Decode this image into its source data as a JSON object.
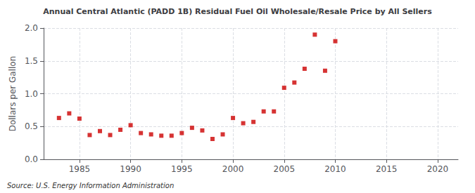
{
  "chart_data": {
    "type": "scatter",
    "title": "Annual Central Atlantic (PADD 1B) Residual Fuel Oil Wholesale/Resale Price by All Sellers",
    "ylabel": "Dollars per Gallon",
    "source": "Source: U.S. Energy Information Administration",
    "x": [
      1983,
      1984,
      1985,
      1986,
      1987,
      1988,
      1989,
      1990,
      1991,
      1992,
      1993,
      1994,
      1995,
      1996,
      1997,
      1998,
      1999,
      2000,
      2001,
      2002,
      2003,
      2004,
      2005,
      2006,
      2007,
      2008,
      2009,
      2010
    ],
    "values": [
      0.63,
      0.7,
      0.62,
      0.37,
      0.43,
      0.37,
      0.45,
      0.52,
      0.4,
      0.38,
      0.36,
      0.36,
      0.4,
      0.48,
      0.44,
      0.31,
      0.38,
      0.63,
      0.55,
      0.57,
      0.73,
      0.73,
      1.09,
      1.17,
      1.38,
      1.9,
      1.35,
      1.8
    ],
    "color": "#cc0000",
    "marker": "square",
    "xlim": [
      1981.5,
      2022
    ],
    "xticks": [
      1985,
      1990,
      1995,
      2000,
      2005,
      2010,
      2015,
      2020
    ],
    "ylim": [
      0.0,
      2.0
    ],
    "yticks": [
      {
        "value": 0.0,
        "label": "0.0"
      },
      0.5,
      {
        "value": 1.0,
        "label": "1.0"
      },
      1.5,
      {
        "value": 2.0,
        "label": "2.0"
      }
    ],
    "grid": true
  }
}
